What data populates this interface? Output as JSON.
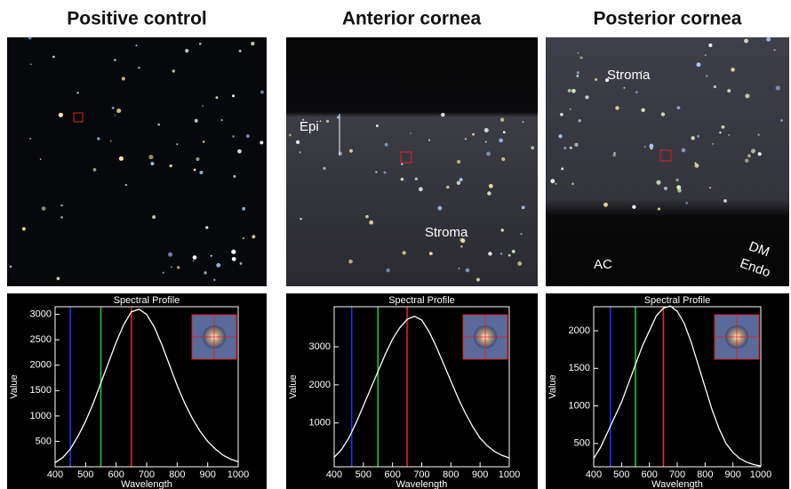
{
  "panels": [
    {
      "title": "Positive control",
      "labels": []
    },
    {
      "title": "Anterior cornea",
      "labels": [
        "Epi",
        "Stroma"
      ]
    },
    {
      "title": "Posterior cornea",
      "labels": [
        "Stroma",
        "AC",
        "DM",
        "Endo"
      ]
    }
  ],
  "chart_data": [
    {
      "type": "line",
      "title": "Spectral Profile",
      "x_label": "Wavelength",
      "y_label": "Value",
      "x": [
        400,
        425,
        450,
        475,
        500,
        525,
        550,
        575,
        600,
        625,
        650,
        675,
        700,
        725,
        750,
        775,
        800,
        825,
        850,
        875,
        900,
        925,
        950,
        975,
        1000
      ],
      "values": [
        80,
        180,
        350,
        600,
        900,
        1250,
        1650,
        2050,
        2450,
        2800,
        3050,
        3100,
        3000,
        2750,
        2400,
        2000,
        1600,
        1250,
        950,
        700,
        500,
        350,
        230,
        150,
        100
      ],
      "color": "#ffffff",
      "xlim": [
        400,
        1000
      ],
      "xticks": [
        400,
        500,
        600,
        700,
        800,
        900,
        1000
      ],
      "ylim": [
        0,
        3150
      ],
      "yticks": [
        500,
        1000,
        1500,
        2000,
        2500,
        3000
      ],
      "markers": [
        {
          "value": 450,
          "color": "#2233ff"
        },
        {
          "value": 550,
          "color": "#22cc33"
        },
        {
          "value": 650,
          "color": "#ee2222"
        }
      ]
    },
    {
      "type": "line",
      "title": "Spectral Profile",
      "x_label": "Wavelength",
      "y_label": "Value",
      "x": [
        400,
        425,
        450,
        475,
        500,
        525,
        550,
        575,
        600,
        625,
        650,
        675,
        700,
        725,
        750,
        775,
        800,
        825,
        850,
        875,
        900,
        925,
        950,
        975,
        1000
      ],
      "values": [
        100,
        300,
        600,
        1000,
        1450,
        1900,
        2350,
        2800,
        3200,
        3500,
        3720,
        3800,
        3700,
        3400,
        3000,
        2550,
        2100,
        1650,
        1250,
        900,
        600,
        400,
        250,
        150,
        80
      ],
      "color": "#ffffff",
      "xlim": [
        400,
        1000
      ],
      "xticks": [
        400,
        500,
        600,
        700,
        800,
        900,
        1000
      ],
      "ylim": [
        -150,
        4050
      ],
      "yticks": [
        1000,
        2000,
        3000
      ],
      "markers": [
        {
          "value": 460,
          "color": "#2233ff"
        },
        {
          "value": 550,
          "color": "#22cc33"
        },
        {
          "value": 650,
          "color": "#ee2222"
        }
      ]
    },
    {
      "type": "line",
      "title": "Spectral Profile",
      "x_label": "Wavelength",
      "y_label": "Value",
      "x": [
        400,
        425,
        450,
        475,
        500,
        525,
        550,
        575,
        600,
        625,
        650,
        675,
        700,
        725,
        750,
        775,
        800,
        825,
        850,
        875,
        900,
        925,
        950,
        975,
        1000
      ],
      "values": [
        300,
        450,
        650,
        850,
        1050,
        1300,
        1550,
        1800,
        2000,
        2200,
        2300,
        2330,
        2260,
        2100,
        1850,
        1550,
        1250,
        950,
        700,
        500,
        380,
        300,
        250,
        220,
        200
      ],
      "color": "#ffffff",
      "xlim": [
        400,
        1000
      ],
      "xticks": [
        400,
        500,
        600,
        700,
        800,
        900,
        1000
      ],
      "ylim": [
        190,
        2320
      ],
      "yticks": [
        500,
        1000,
        1500,
        2000
      ],
      "markers": [
        {
          "value": 460,
          "color": "#2233ff"
        },
        {
          "value": 550,
          "color": "#22cc33"
        },
        {
          "value": 650,
          "color": "#ee2222"
        }
      ]
    }
  ]
}
